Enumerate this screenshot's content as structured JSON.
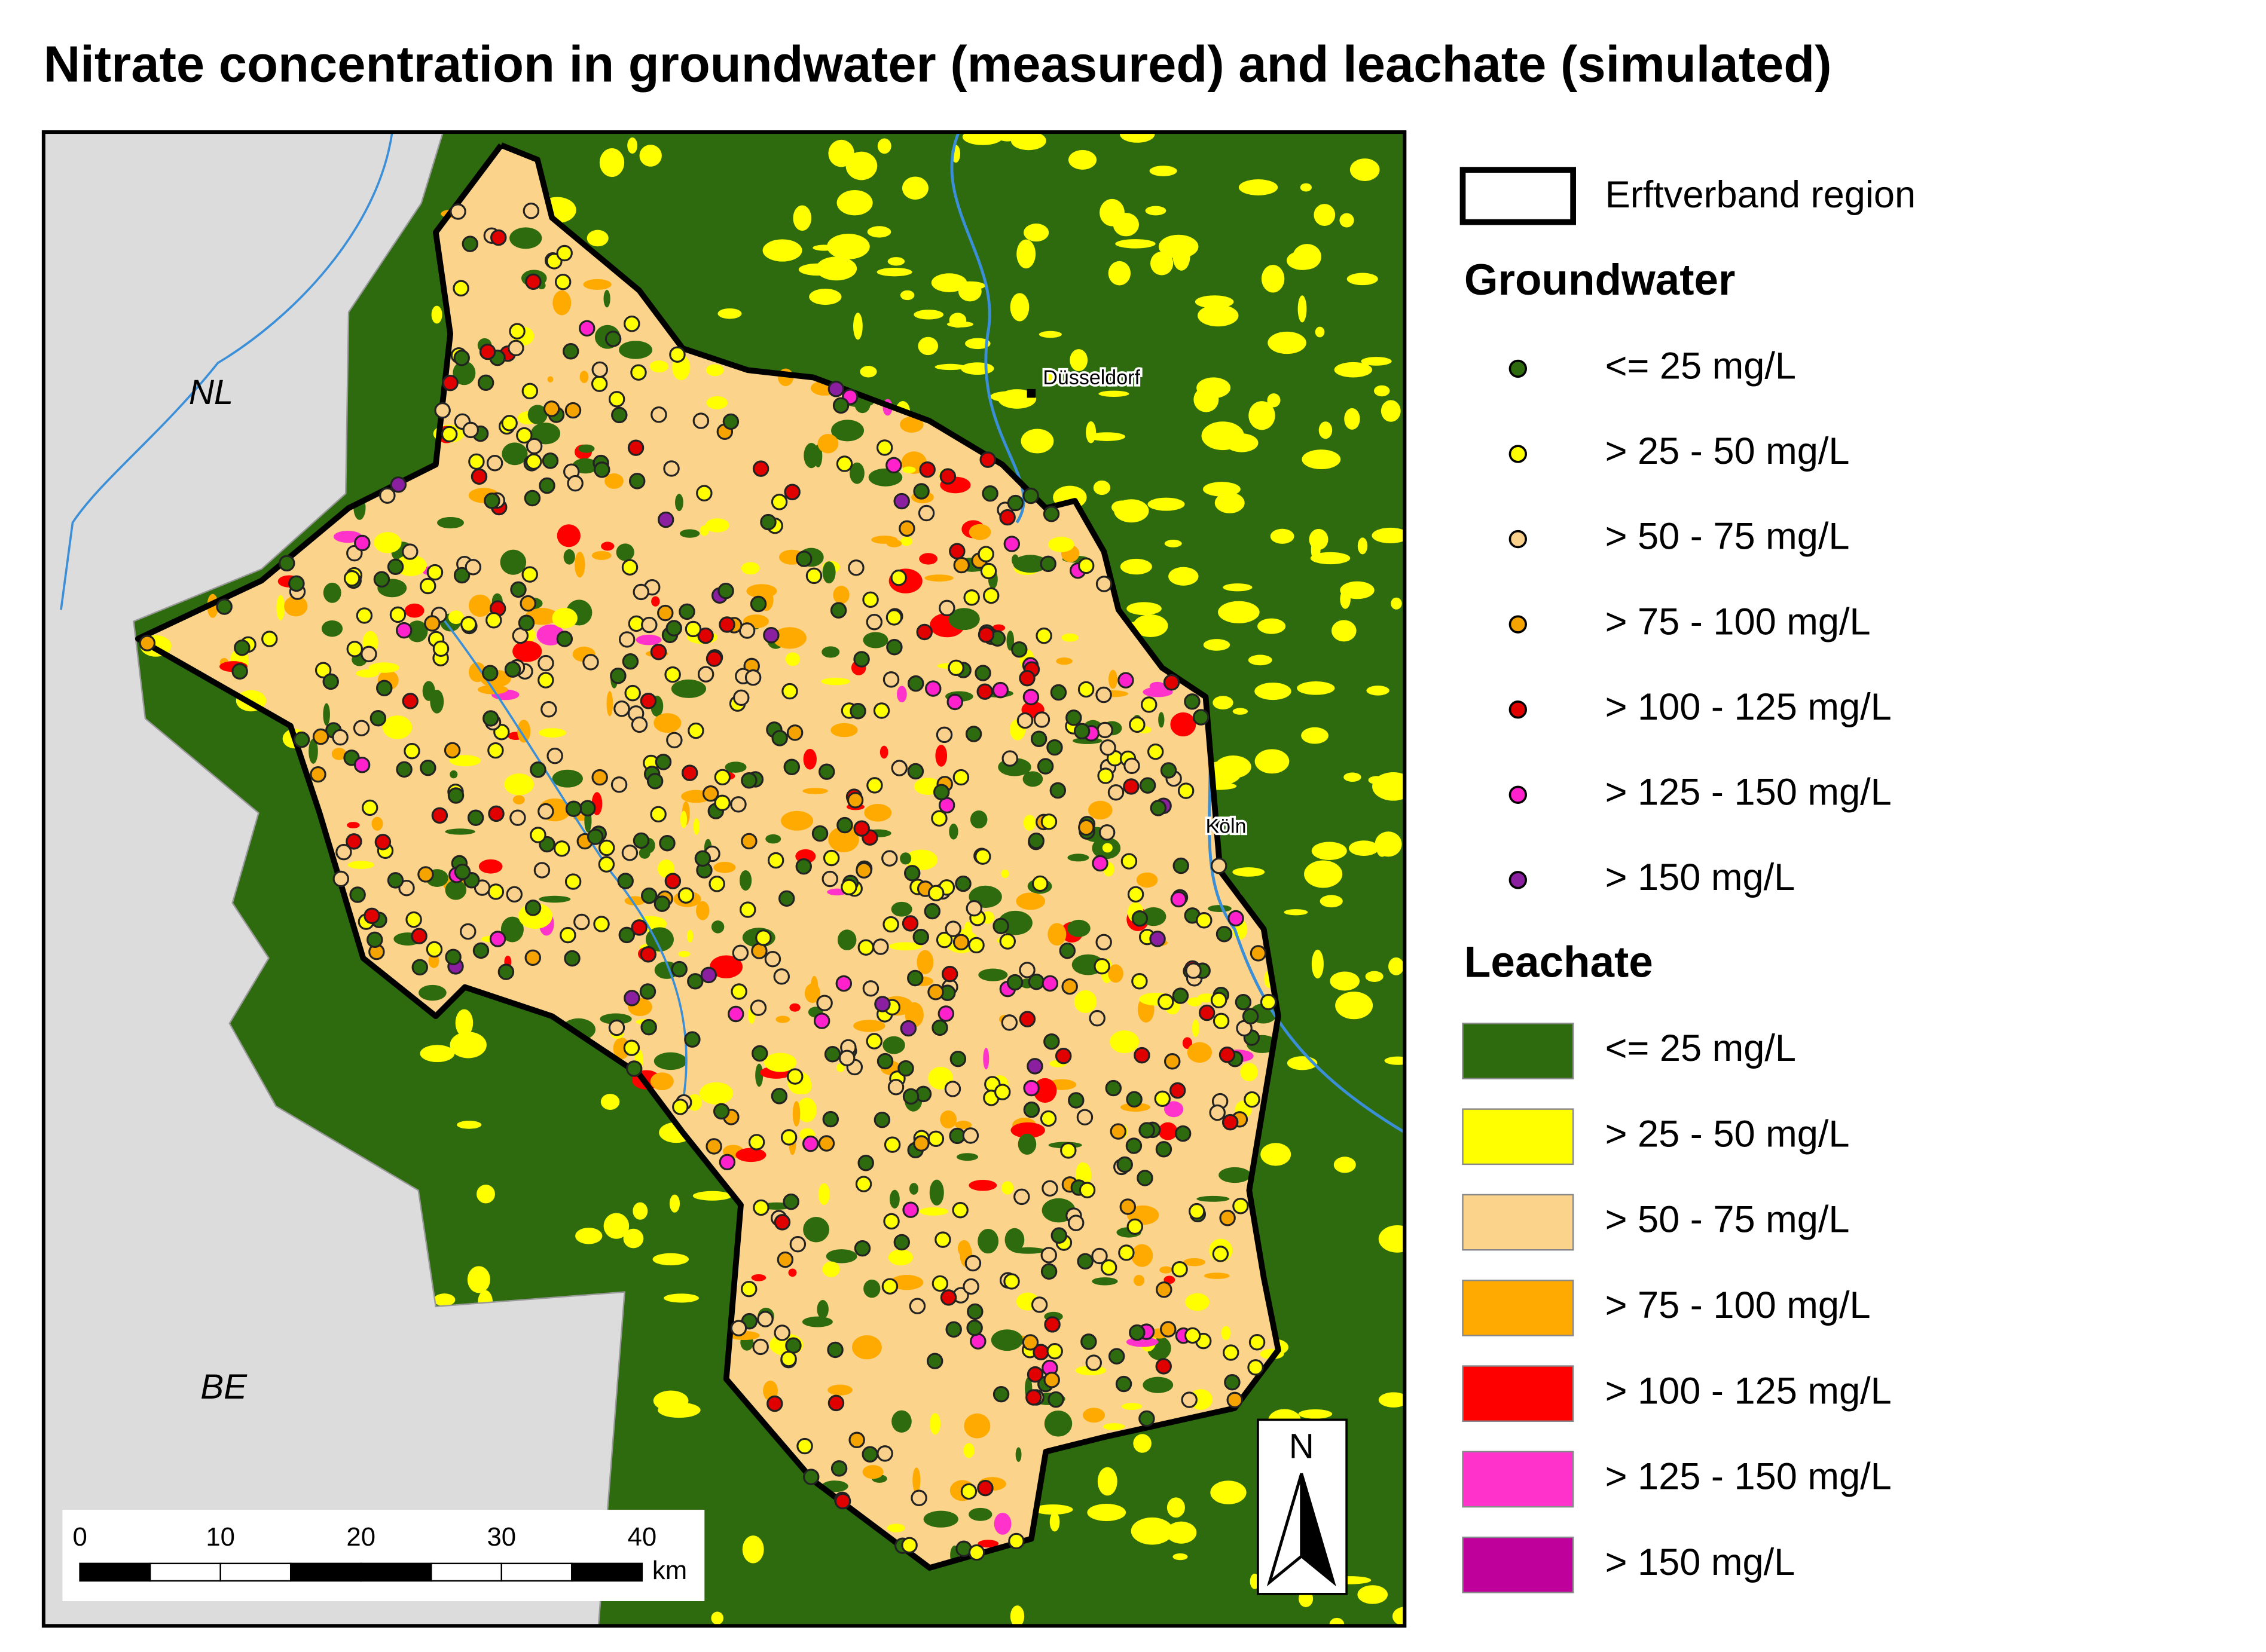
{
  "title": "Nitrate concentration in groundwater (measured) and leachate (simulated)",
  "map": {
    "country_labels": [
      "NL",
      "BE"
    ],
    "city_labels": [
      "Düsseldorf",
      "Köln"
    ]
  },
  "scale_bar": {
    "ticks": [
      0,
      10,
      20,
      30,
      40
    ],
    "unit": "km"
  },
  "north_arrow": "N",
  "legend": {
    "region": "Erftverband region",
    "groundwater": {
      "title": "Groundwater",
      "items": [
        {
          "label": "<= 25 mg/L",
          "color": "#2e6b0f"
        },
        {
          "label": "> 25 - 50 mg/L",
          "color": "#ffff00"
        },
        {
          "label": "> 50 - 75 mg/L",
          "color": "#f9d08c"
        },
        {
          "label": "> 75 - 100 mg/L",
          "color": "#f5a300"
        },
        {
          "label": "> 100 - 125 mg/L",
          "color": "#e00000"
        },
        {
          "label": "> 125 - 150 mg/L",
          "color": "#ff22cc"
        },
        {
          "label": "> 150 mg/L",
          "color": "#8a1fa0"
        }
      ]
    },
    "leachate": {
      "title": "Leachate",
      "items": [
        {
          "label": "<= 25 mg/L",
          "color": "#2e6b0f"
        },
        {
          "label": "> 25 - 50 mg/L",
          "color": "#ffff00"
        },
        {
          "label": "> 50 - 75 mg/L",
          "color": "#fcd38a"
        },
        {
          "label": "> 75 - 100 mg/L",
          "color": "#ffaa00"
        },
        {
          "label": "> 100 - 125 mg/L",
          "color": "#ff0000"
        },
        {
          "label": "> 125 - 150 mg/L",
          "color": "#ff33cc"
        },
        {
          "label": "> 150 mg/L",
          "color": "#c0009a"
        }
      ]
    }
  }
}
